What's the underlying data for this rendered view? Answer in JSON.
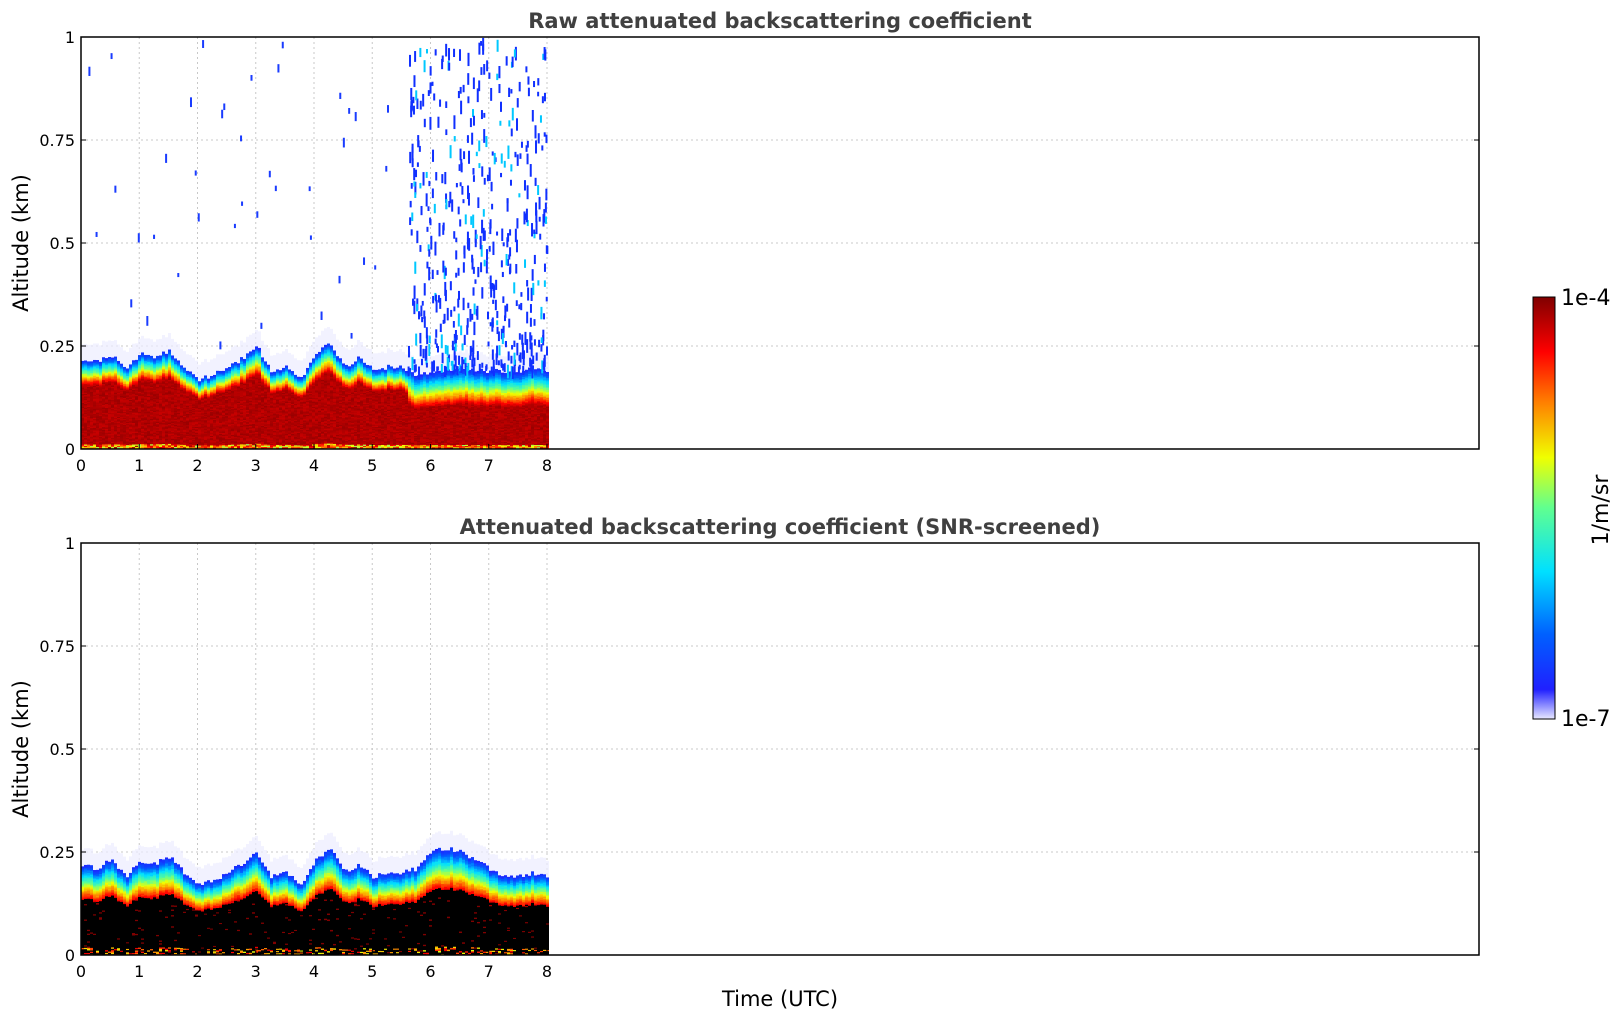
{
  "chart_data": [
    {
      "type": "heatmap",
      "title": "Raw attenuated backscattering coefficient",
      "xlabel": "",
      "ylabel": "Altitude (km)",
      "xlim": [
        0,
        24
      ],
      "ylim": [
        0,
        1
      ],
      "xticks": [
        "0",
        "1",
        "2",
        "3",
        "4",
        "5",
        "6",
        "7",
        "8"
      ],
      "yticks": [
        "0",
        "0.25",
        "0.5",
        "0.75",
        "1"
      ],
      "grid": true,
      "data_extent_x": [
        0,
        8
      ],
      "layer_top_km": [
        0.22,
        0.21,
        0.23,
        0.19,
        0.23,
        0.22,
        0.24,
        0.2,
        0.17,
        0.18,
        0.2,
        0.22,
        0.25,
        0.19,
        0.2,
        0.17,
        0.23,
        0.26,
        0.2,
        0.22,
        0.19,
        0.2,
        0.2,
        0.18,
        0.19,
        0.19,
        0.2,
        0.19,
        0.19,
        0.19,
        0.19,
        0.2,
        0.19
      ],
      "noise_region_x": [
        5.6,
        8
      ]
    },
    {
      "type": "heatmap",
      "title": "Attenuated backscattering coefficient (SNR-screened)",
      "xlabel": "Time (UTC)",
      "ylabel": "Altitude (km)",
      "xlim": [
        0,
        24
      ],
      "ylim": [
        0,
        1
      ],
      "xticks": [
        "0",
        "1",
        "2",
        "3",
        "4",
        "5",
        "6",
        "7",
        "8"
      ],
      "yticks": [
        "0",
        "0.25",
        "0.5",
        "0.75",
        "1"
      ],
      "grid": true,
      "data_extent_x": [
        0,
        8
      ],
      "layer_top_km": [
        0.22,
        0.21,
        0.23,
        0.19,
        0.23,
        0.22,
        0.24,
        0.2,
        0.17,
        0.18,
        0.2,
        0.22,
        0.25,
        0.19,
        0.2,
        0.17,
        0.23,
        0.26,
        0.2,
        0.22,
        0.19,
        0.2,
        0.2,
        0.21,
        0.25,
        0.26,
        0.25,
        0.23,
        0.21,
        0.19,
        0.19,
        0.2,
        0.19
      ],
      "screened_fill_color": "#000000"
    }
  ],
  "colorbar": {
    "label": "1/m/sr",
    "max_label": "1e-4",
    "min_label": "1e-7",
    "colors": [
      "#e8e8ff",
      "#0000ff",
      "#00e0ff",
      "#f0ff00",
      "#ff8000",
      "#ff0000",
      "#800000"
    ]
  }
}
